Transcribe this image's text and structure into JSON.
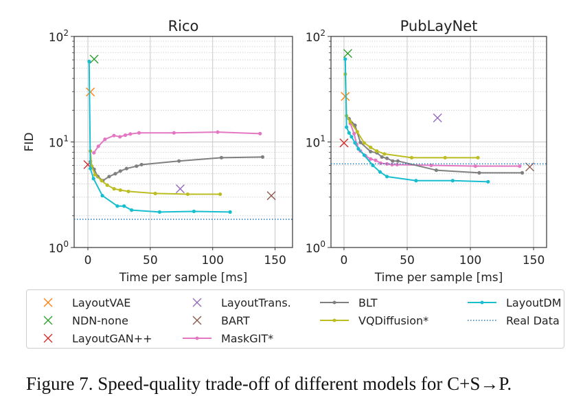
{
  "chart_data": [
    {
      "type": "scatter",
      "title": "Rico",
      "xlabel": "Time per sample [ms]",
      "ylabel": "FID",
      "xlim": [
        -11,
        164
      ],
      "ylim": [
        1,
        100
      ],
      "yscale": "log",
      "xticks": [
        "0",
        "50",
        "100",
        "150"
      ],
      "yticks": [
        "10^0",
        "10^1",
        "10^2"
      ],
      "grid": true,
      "series": [
        {
          "name": "LayoutVAE",
          "kind": "marker",
          "x": [
            2
          ],
          "y": [
            29.8
          ]
        },
        {
          "name": "NDN-none",
          "kind": "marker",
          "x": [
            5
          ],
          "y": [
            61
          ]
        },
        {
          "name": "LayoutGAN++",
          "kind": "marker",
          "x": [
            0
          ],
          "y": [
            6.1
          ]
        },
        {
          "name": "LayoutTrans.",
          "kind": "marker",
          "x": [
            74
          ],
          "y": [
            3.6
          ]
        },
        {
          "name": "BART",
          "kind": "marker",
          "x": [
            147
          ],
          "y": [
            3.1
          ]
        },
        {
          "name": "MaskGIT*",
          "kind": "line",
          "x": [
            4.8,
            8.4,
            13.7,
            20.9,
            25.7,
            30,
            34,
            41,
            69,
            104,
            138
          ],
          "y": [
            7.9,
            9.1,
            10.6,
            11.5,
            11.2,
            11.6,
            11.9,
            12.2,
            12.2,
            12.4,
            12.0
          ]
        },
        {
          "name": "BLT",
          "kind": "line",
          "x": [
            2,
            5,
            8,
            12,
            17,
            22,
            26,
            31,
            39,
            43,
            73,
            107,
            140
          ],
          "y": [
            6.5,
            5.5,
            4.7,
            4.3,
            4.7,
            5.0,
            5.3,
            5.6,
            5.9,
            6.1,
            6.6,
            7.1,
            7.2
          ]
        },
        {
          "name": "VQDiffusion*",
          "kind": "line",
          "x": [
            2,
            3,
            5.7,
            11,
            15.5,
            21,
            26,
            32.5,
            54,
            80,
            106
          ],
          "y": [
            8.2,
            5.9,
            4.9,
            4.3,
            3.9,
            3.6,
            3.5,
            3.4,
            3.25,
            3.2,
            3.2
          ]
        },
        {
          "name": "LayoutDM",
          "kind": "line",
          "x": [
            1,
            2,
            4.5,
            11.6,
            23.6,
            29,
            35,
            57.5,
            85,
            114
          ],
          "y": [
            58,
            5.6,
            4.5,
            3.1,
            2.47,
            2.47,
            2.26,
            2.17,
            2.2,
            2.17
          ]
        },
        {
          "name": "Real Data",
          "kind": "hline",
          "y": [
            1.85
          ]
        }
      ]
    },
    {
      "type": "scatter",
      "title": "PubLayNet",
      "xlabel": "Time per sample [ms]",
      "ylabel": "",
      "xlim": [
        -10.3,
        160.3
      ],
      "ylim": [
        1,
        100
      ],
      "yscale": "log",
      "xticks": [
        "0",
        "50",
        "100",
        "150"
      ],
      "yticks": [
        "10^0",
        "10^1",
        "10^2"
      ],
      "grid": true,
      "series": [
        {
          "name": "LayoutVAE",
          "kind": "marker",
          "x": [
            1
          ],
          "y": [
            27
          ]
        },
        {
          "name": "NDN-none",
          "kind": "marker",
          "x": [
            3
          ],
          "y": [
            69
          ]
        },
        {
          "name": "LayoutGAN++",
          "kind": "marker",
          "x": [
            0
          ],
          "y": [
            9.8
          ]
        },
        {
          "name": "LayoutTrans.",
          "kind": "marker",
          "x": [
            74
          ],
          "y": [
            16.9
          ]
        },
        {
          "name": "BART",
          "kind": "marker",
          "x": [
            147
          ],
          "y": [
            5.8
          ]
        },
        {
          "name": "MaskGIT*",
          "kind": "line",
          "x": [
            5,
            8,
            10,
            13,
            17,
            21,
            25,
            29,
            34,
            38,
            42,
            69,
            104,
            139
          ],
          "y": [
            15,
            12,
            9.5,
            8.2,
            7.4,
            6.9,
            6.7,
            6.3,
            6.2,
            6.1,
            6.1,
            6.0,
            5.9,
            5.9
          ]
        },
        {
          "name": "BLT",
          "kind": "line",
          "x": [
            4,
            8.7,
            13,
            21,
            26,
            30,
            34,
            38.5,
            42.6,
            73,
            107,
            141
          ],
          "y": [
            16.6,
            14.4,
            9.9,
            8.1,
            7.9,
            7.2,
            7.0,
            6.6,
            6.6,
            5.4,
            5.1,
            5.1
          ]
        },
        {
          "name": "VQDiffusion*",
          "kind": "line",
          "x": [
            1,
            2,
            5,
            10.5,
            16,
            21,
            26,
            32,
            53.5,
            80,
            106
          ],
          "y": [
            44,
            17.7,
            15.6,
            12.5,
            9.8,
            8.9,
            8.2,
            7.7,
            7.1,
            7.1,
            7.1
          ]
        },
        {
          "name": "LayoutDM",
          "kind": "line",
          "x": [
            1,
            2,
            4,
            6,
            8.7,
            11.4,
            16,
            22.8,
            28.5,
            34,
            57,
            86,
            114
          ],
          "y": [
            61,
            13.8,
            12.2,
            11.2,
            9.8,
            8.6,
            7.5,
            6.0,
            5.2,
            4.7,
            4.3,
            4.3,
            4.2
          ]
        },
        {
          "name": "Real Data",
          "kind": "hline",
          "y": [
            6.2
          ]
        }
      ]
    }
  ],
  "colors": {
    "LayoutVAE": "#ff7f0e",
    "NDN-none": "#2ca02c",
    "LayoutGAN++": "#d62728",
    "LayoutTrans.": "#9467bd",
    "BART": "#8c564b",
    "MaskGIT*": "#e377c2",
    "BLT": "#7f7f7f",
    "VQDiffusion*": "#bcbd22",
    "LayoutDM": "#17becf",
    "Real Data": "#1f77b4"
  },
  "legend": {
    "placement": "bottom",
    "items": [
      {
        "label": "LayoutVAE",
        "symbol": "x"
      },
      {
        "label": "NDN-none",
        "symbol": "x"
      },
      {
        "label": "LayoutGAN++",
        "symbol": "x"
      },
      {
        "label": "LayoutTrans.",
        "symbol": "x"
      },
      {
        "label": "BART",
        "symbol": "x"
      },
      {
        "label": "MaskGIT*",
        "symbol": "line"
      },
      {
        "label": "BLT",
        "symbol": "line"
      },
      {
        "label": "VQDiffusion*",
        "symbol": "line"
      },
      {
        "label": "LayoutDM",
        "symbol": "line"
      },
      {
        "label": "Real Data",
        "symbol": "dotted"
      }
    ]
  },
  "caption": "Figure 7. Speed-quality trade-off of different models for C+S→P."
}
